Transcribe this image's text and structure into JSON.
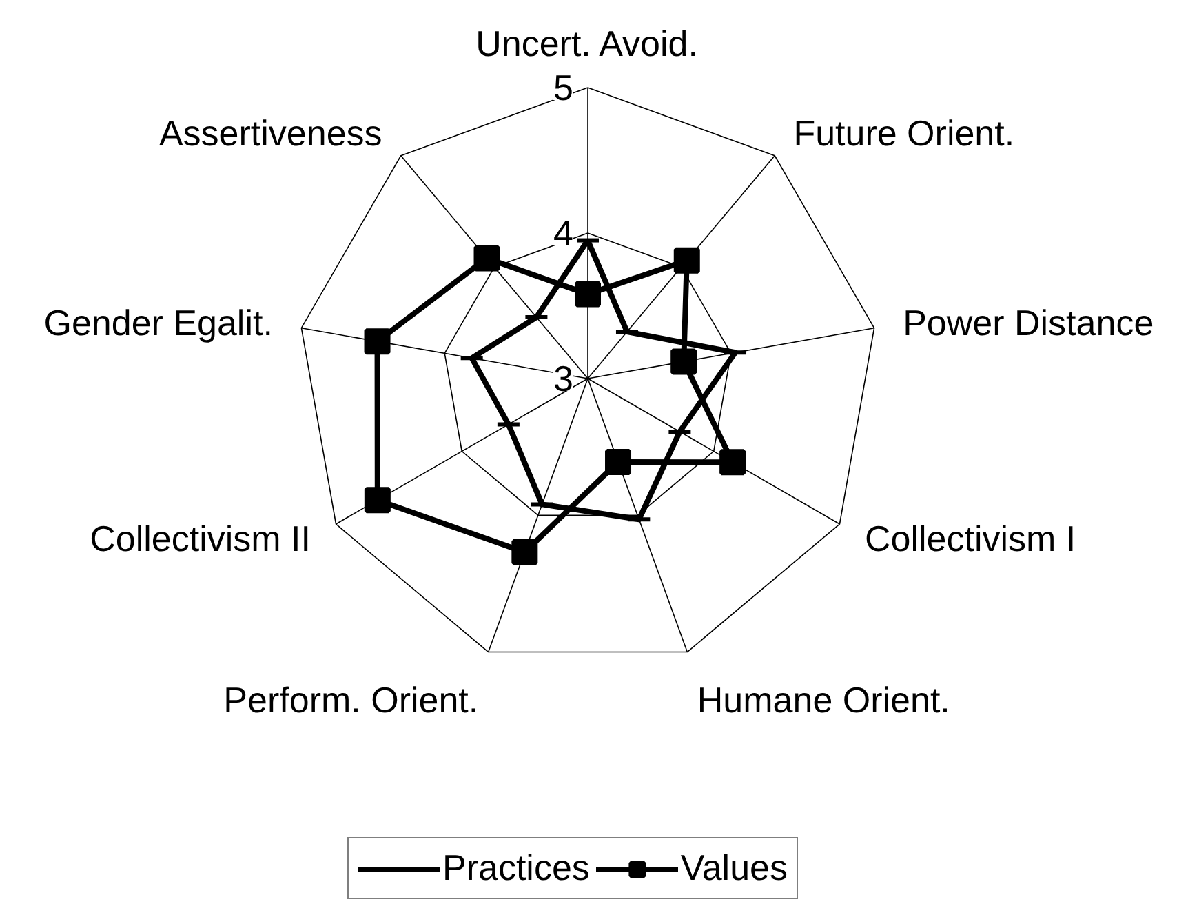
{
  "chart_data": {
    "type": "radar",
    "categories": [
      "Uncert. Avoid.",
      "Future Orient.",
      "Power Distance",
      "Collectivism I",
      "Humane Orient.",
      "Perform. Orient.",
      "Collectivism II",
      "Gender Egalit.",
      "Assertiveness"
    ],
    "series": [
      {
        "name": "Practices",
        "color": "#000000",
        "marker": "dash",
        "values": [
          3.95,
          3.42,
          4.03,
          3.73,
          4.03,
          3.92,
          3.63,
          3.81,
          3.55
        ]
      },
      {
        "name": "Values",
        "color": "#000000",
        "marker": "square",
        "values": [
          3.58,
          4.06,
          3.67,
          4.15,
          3.61,
          4.27,
          4.67,
          4.47,
          4.08
        ]
      }
    ],
    "ylim": [
      3,
      5
    ],
    "yticks": [
      3,
      4,
      5
    ],
    "grid": true,
    "legend": "bottom",
    "line_style": "solid"
  }
}
